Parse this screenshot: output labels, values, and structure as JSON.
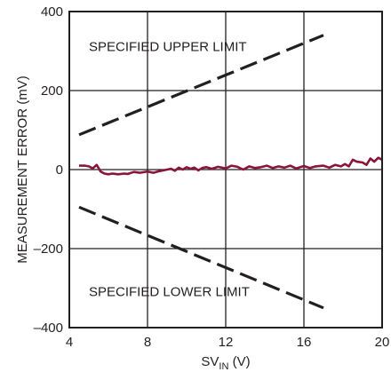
{
  "chart_data": {
    "type": "line",
    "title": "",
    "xlabel": {
      "main": "SV",
      "sub": "IN",
      "unit": " (V)"
    },
    "ylabel": "MEASUREMENT ERROR (mV)",
    "xlim": [
      4,
      20
    ],
    "ylim": [
      -400,
      400
    ],
    "xticks": [
      4,
      8,
      12,
      16,
      20
    ],
    "xtick_labels": [
      "4",
      "8",
      "12",
      "16",
      "20"
    ],
    "yticks": [
      -400,
      -200,
      0,
      200,
      400
    ],
    "ytick_labels": [
      "–400",
      "–200",
      "0",
      "200",
      "400"
    ],
    "grid": true,
    "legend": "none",
    "colors": {
      "measured": "#8b1538",
      "limits": "#231f20",
      "grid": "#231f20"
    },
    "annotations": [
      {
        "text": "SPECIFIED UPPER LIMIT",
        "x": 5.0,
        "y": 300
      },
      {
        "text": "SPECIFIED LOWER LIMIT",
        "x": 5.0,
        "y": -320
      }
    ],
    "series": [
      {
        "style": "dashed",
        "x": [
          4.5,
          17.0
        ],
        "y": [
          88,
          340
        ]
      },
      {
        "style": "dashed",
        "x": [
          4.5,
          17.0
        ],
        "y": [
          -95,
          -350
        ]
      },
      {
        "style": "solid",
        "x": [
          4.5,
          4.8,
          5.0,
          5.2,
          5.4,
          5.6,
          5.8,
          6.0,
          6.2,
          6.5,
          6.8,
          7.0,
          7.3,
          7.6,
          8.0,
          8.3,
          8.6,
          9.0,
          9.2,
          9.4,
          9.6,
          9.8,
          10.0,
          10.2,
          10.4,
          10.6,
          10.8,
          11.0,
          11.3,
          11.6,
          12.0,
          12.3,
          12.6,
          12.9,
          13.2,
          13.5,
          13.8,
          14.1,
          14.4,
          14.7,
          15.0,
          15.3,
          15.6,
          16.0,
          16.3,
          16.6,
          17.0,
          17.3,
          17.6,
          17.9,
          18.1,
          18.3,
          18.5,
          18.7,
          19.0,
          19.2,
          19.4,
          19.6,
          19.8,
          20.0
        ],
        "y": [
          10,
          10,
          8,
          3,
          12,
          -5,
          -10,
          -12,
          -10,
          -12,
          -10,
          -11,
          -6,
          -8,
          -5,
          -8,
          -4,
          0,
          2,
          -3,
          5,
          0,
          6,
          2,
          5,
          -2,
          4,
          6,
          2,
          7,
          3,
          10,
          7,
          0,
          8,
          4,
          6,
          10,
          4,
          8,
          5,
          10,
          3,
          9,
          4,
          8,
          10,
          5,
          12,
          8,
          14,
          8,
          25,
          20,
          18,
          12,
          28,
          20,
          30,
          25
        ]
      }
    ]
  }
}
